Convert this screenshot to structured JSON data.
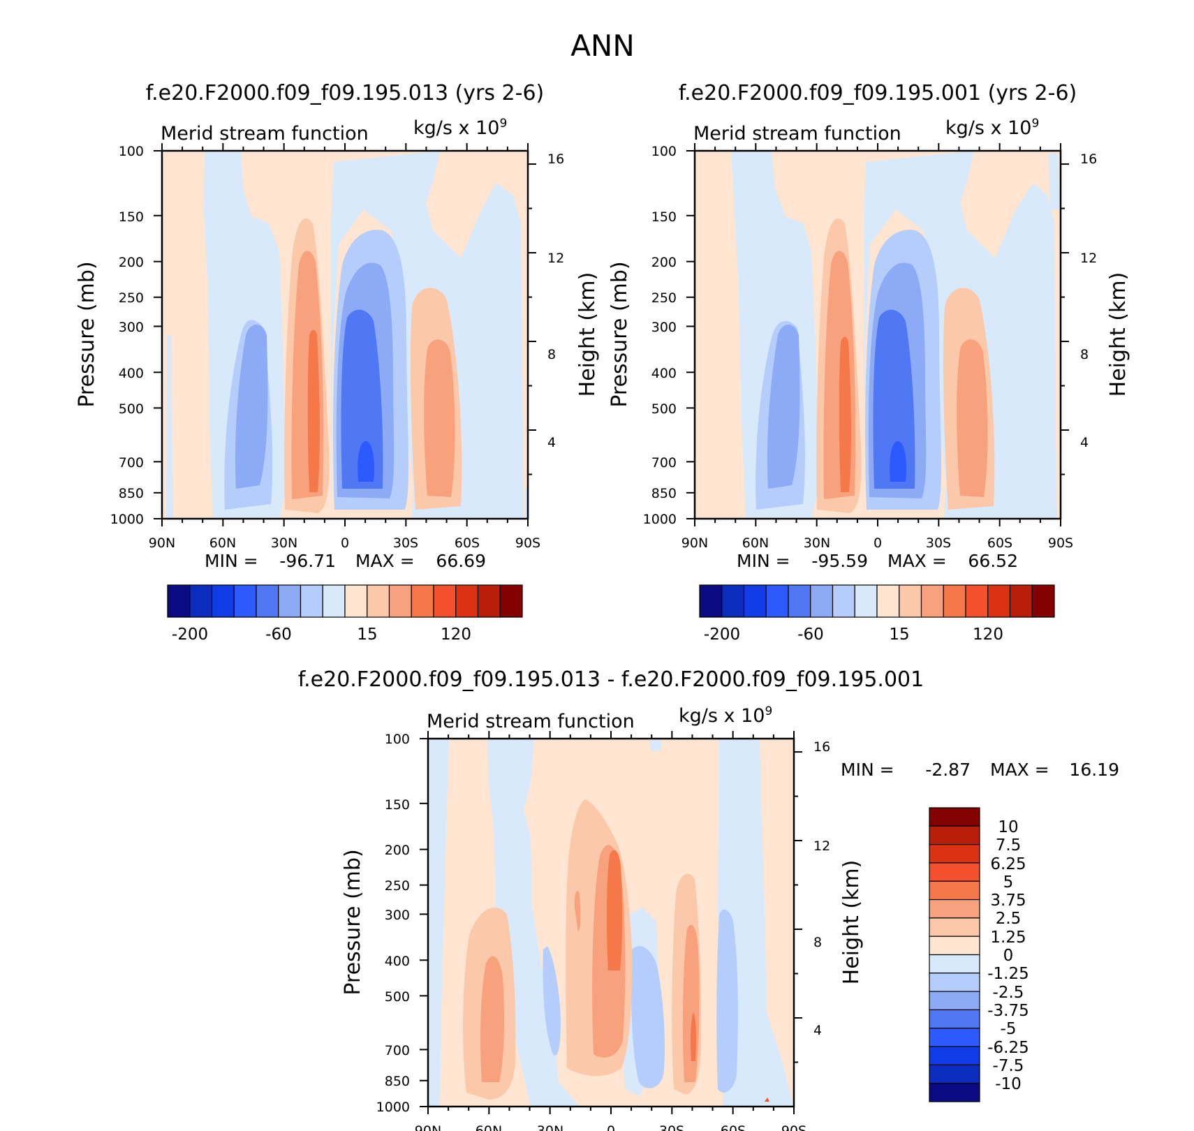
{
  "title": "ANN",
  "panels": [
    {
      "id": "top-left",
      "title": "f.e20.F2000.f09_f09.195.013 (yrs 2-6)",
      "subtitle": "Merid stream function",
      "units_prefix": "kg/s x 10",
      "units_exp": "9",
      "ylabel": "Pressure (mb)",
      "ylabel_right": "Height (km)",
      "min_label": "MIN =",
      "min_value": "-96.71",
      "max_label": "MAX =",
      "max_value": "66.69"
    },
    {
      "id": "top-right",
      "title": "f.e20.F2000.f09_f09.195.001 (yrs 2-6)",
      "subtitle": "Merid stream function",
      "units_prefix": "kg/s x 10",
      "units_exp": "9",
      "ylabel": "Pressure (mb)",
      "ylabel_right": "Height (km)",
      "min_label": "MIN =",
      "min_value": "-95.59",
      "max_label": "MAX =",
      "max_value": "66.52"
    },
    {
      "id": "bottom",
      "title": "f.e20.F2000.f09_f09.195.013 - f.e20.F2000.f09_f09.195.001",
      "subtitle": "Merid stream function",
      "units_prefix": "kg/s x 10",
      "units_exp": "9",
      "ylabel": "Pressure (mb)",
      "ylabel_right": "Height (km)",
      "min_label": "MIN =",
      "min_value": "-2.87",
      "max_label": "MAX =",
      "max_value": "16.19"
    }
  ],
  "axes": {
    "x_ticks": [
      "90N",
      "60N",
      "30N",
      "0",
      "30S",
      "60S",
      "90S"
    ],
    "y_ticks": [
      "100",
      "150",
      "200",
      "250",
      "300",
      "400",
      "500",
      "700",
      "850",
      "1000"
    ],
    "y_right_ticks": [
      "16",
      "12",
      "8",
      "4"
    ]
  },
  "colorbar_top": {
    "colors": [
      "#0a0a82",
      "#0a2dbe",
      "#0f3ce6",
      "#2d5aff",
      "#5078f5",
      "#8caaf5",
      "#b4cdfa",
      "#d7e9fb",
      "#fde5d2",
      "#fbc8aa",
      "#f7a27c",
      "#f5784b",
      "#f5502d",
      "#dc3214",
      "#b91e0a",
      "#820000"
    ],
    "labels": [
      "-200",
      "-60",
      "15",
      "120"
    ]
  },
  "colorbar_diff": {
    "colors": [
      "#0a0a82",
      "#0a2dbe",
      "#0f3ce6",
      "#2d5aff",
      "#5078f5",
      "#8caaf5",
      "#b4cdfa",
      "#d7e9fb",
      "#fde5d2",
      "#fbc8aa",
      "#f7a27c",
      "#f5784b",
      "#f5502d",
      "#dc3214",
      "#b91e0a",
      "#820000"
    ],
    "labels": [
      "10",
      "7.5",
      "6.25",
      "5",
      "3.75",
      "2.5",
      "1.25",
      "0",
      "-1.25",
      "-2.5",
      "-3.75",
      "-5",
      "-6.25",
      "-7.5",
      "-10"
    ]
  },
  "chart_data": [
    {
      "type": "heatmap",
      "title": "f.e20.F2000.f09_f09.195.013 (yrs 2-6)",
      "xlabel": "",
      "ylabel": "Pressure (mb)",
      "y2label": "Height (km)",
      "x_range": [
        "90N",
        "90S"
      ],
      "y_range": [
        1000,
        100
      ],
      "y_scale": "log",
      "min": -96.71,
      "max": 66.69,
      "features": [
        {
          "lat": 12,
          "p": 650,
          "value": -96.71
        },
        {
          "lat": -44,
          "p": 480,
          "value": 45
        },
        {
          "lat": 17,
          "p": 500,
          "value": 40
        },
        {
          "lat": 43,
          "p": 520,
          "value": -20
        }
      ]
    },
    {
      "type": "heatmap",
      "title": "f.e20.F2000.f09_f09.195.001 (yrs 2-6)",
      "xlabel": "",
      "ylabel": "Pressure (mb)",
      "y2label": "Height (km)",
      "x_range": [
        "90N",
        "90S"
      ],
      "y_range": [
        1000,
        100
      ],
      "y_scale": "log",
      "min": -95.59,
      "max": 66.52,
      "features": [
        {
          "lat": 12,
          "p": 650,
          "value": -95.59
        },
        {
          "lat": -45,
          "p": 480,
          "value": 45
        },
        {
          "lat": 16,
          "p": 500,
          "value": 40
        },
        {
          "lat": 42,
          "p": 520,
          "value": -20
        }
      ]
    },
    {
      "type": "heatmap",
      "title": "f.e20.F2000.f09_f09.195.013 - f.e20.F2000.f09_f09.195.001",
      "xlabel": "",
      "ylabel": "Pressure (mb)",
      "y2label": "Height (km)",
      "x_range": [
        "90N",
        "90S"
      ],
      "y_range": [
        1000,
        100
      ],
      "y_scale": "log",
      "min": -2.87,
      "max": 16.19,
      "features": [
        {
          "lat": -3,
          "p": 320,
          "value": 5
        },
        {
          "lat": -40,
          "p": 600,
          "value": 4
        },
        {
          "lat": 60,
          "p": 600,
          "value": 3
        },
        {
          "lat": -17,
          "p": 650,
          "value": -2
        }
      ]
    }
  ]
}
